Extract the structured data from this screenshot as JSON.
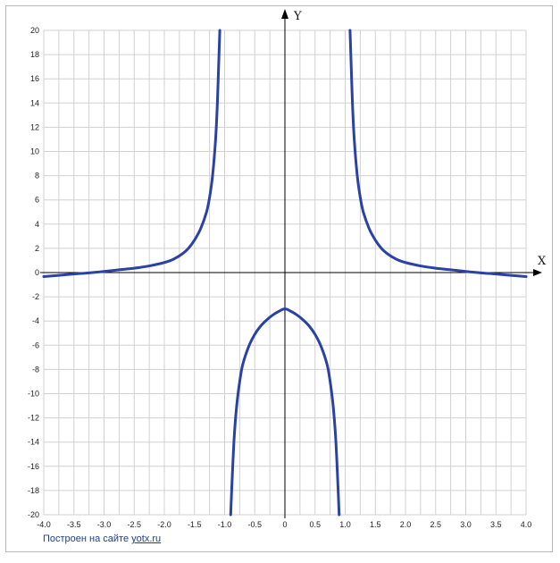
{
  "chart_data": {
    "type": "line",
    "title": "",
    "xlabel": "X",
    "ylabel": "Y",
    "xlim": [
      -4.0,
      4.0
    ],
    "ylim": [
      -20,
      20
    ],
    "grid": true,
    "x_ticks": [
      "-4.0",
      "-3.5",
      "-3.0",
      "-2.5",
      "-2.0",
      "-1.5",
      "-1.0",
      "-0.5",
      "0",
      "0.5",
      "1.0",
      "1.5",
      "2.0",
      "2.5",
      "3.0",
      "3.5",
      "4.0"
    ],
    "y_ticks": [
      "20",
      "18",
      "16",
      "14",
      "12",
      "10",
      "8",
      "6",
      "4",
      "2",
      "0",
      "-2",
      "-4",
      "-6",
      "-8",
      "-10",
      "-12",
      "-14",
      "-16",
      "-18",
      "-20"
    ],
    "series": [
      {
        "color": "#2a41a6",
        "points": [
          [
            -4.0,
            -0.33
          ],
          [
            -3.75,
            -0.23
          ],
          [
            -3.5,
            -0.12
          ],
          [
            -3.25,
            -0.03
          ],
          [
            -3.0,
            0.09
          ],
          [
            -2.75,
            0.23
          ],
          [
            -2.5,
            0.36
          ],
          [
            -2.25,
            0.55
          ],
          [
            -2.0,
            0.83
          ],
          [
            -1.85,
            1.1
          ],
          [
            -1.7,
            1.55
          ],
          [
            -1.6,
            2.0
          ],
          [
            -1.5,
            2.68
          ],
          [
            -1.4,
            3.6
          ],
          [
            -1.3,
            5.0
          ],
          [
            -1.25,
            6.2
          ],
          [
            -1.2,
            8.0
          ],
          [
            -1.15,
            11.0
          ],
          [
            -1.12,
            14.0
          ],
          [
            -1.1,
            17.0
          ],
          [
            -1.08,
            20.0
          ]
        ]
      },
      {
        "color": "#2a41a6",
        "points": [
          [
            1.08,
            20.0
          ],
          [
            1.1,
            17.0
          ],
          [
            1.12,
            14.0
          ],
          [
            1.15,
            11.0
          ],
          [
            1.2,
            8.0
          ],
          [
            1.25,
            6.2
          ],
          [
            1.3,
            5.0
          ],
          [
            1.4,
            3.6
          ],
          [
            1.5,
            2.68
          ],
          [
            1.6,
            2.0
          ],
          [
            1.7,
            1.55
          ],
          [
            1.85,
            1.1
          ],
          [
            2.0,
            0.83
          ],
          [
            2.25,
            0.55
          ],
          [
            2.5,
            0.36
          ],
          [
            2.75,
            0.23
          ],
          [
            3.0,
            0.09
          ],
          [
            3.25,
            -0.03
          ],
          [
            3.5,
            -0.12
          ],
          [
            3.75,
            -0.23
          ],
          [
            4.0,
            -0.33
          ]
        ]
      },
      {
        "color": "#2a41a6",
        "points": [
          [
            -0.9,
            -20.0
          ],
          [
            -0.87,
            -16.5
          ],
          [
            -0.84,
            -13.5
          ],
          [
            -0.8,
            -11.0
          ],
          [
            -0.75,
            -9.0
          ],
          [
            -0.7,
            -7.6
          ],
          [
            -0.6,
            -6.1
          ],
          [
            -0.5,
            -5.1
          ],
          [
            -0.4,
            -4.4
          ],
          [
            -0.3,
            -3.9
          ],
          [
            -0.2,
            -3.5
          ],
          [
            -0.1,
            -3.2
          ],
          [
            0.0,
            -3.0
          ],
          [
            0.1,
            -3.2
          ],
          [
            0.2,
            -3.5
          ],
          [
            0.3,
            -3.9
          ],
          [
            0.4,
            -4.4
          ],
          [
            0.5,
            -5.1
          ],
          [
            0.6,
            -6.1
          ],
          [
            0.7,
            -7.6
          ],
          [
            0.75,
            -9.0
          ],
          [
            0.8,
            -11.0
          ],
          [
            0.84,
            -13.5
          ],
          [
            0.87,
            -16.5
          ],
          [
            0.9,
            -20.0
          ]
        ]
      }
    ]
  },
  "footer": {
    "prefix": "Построен на сайте ",
    "link": "yotx.ru"
  }
}
